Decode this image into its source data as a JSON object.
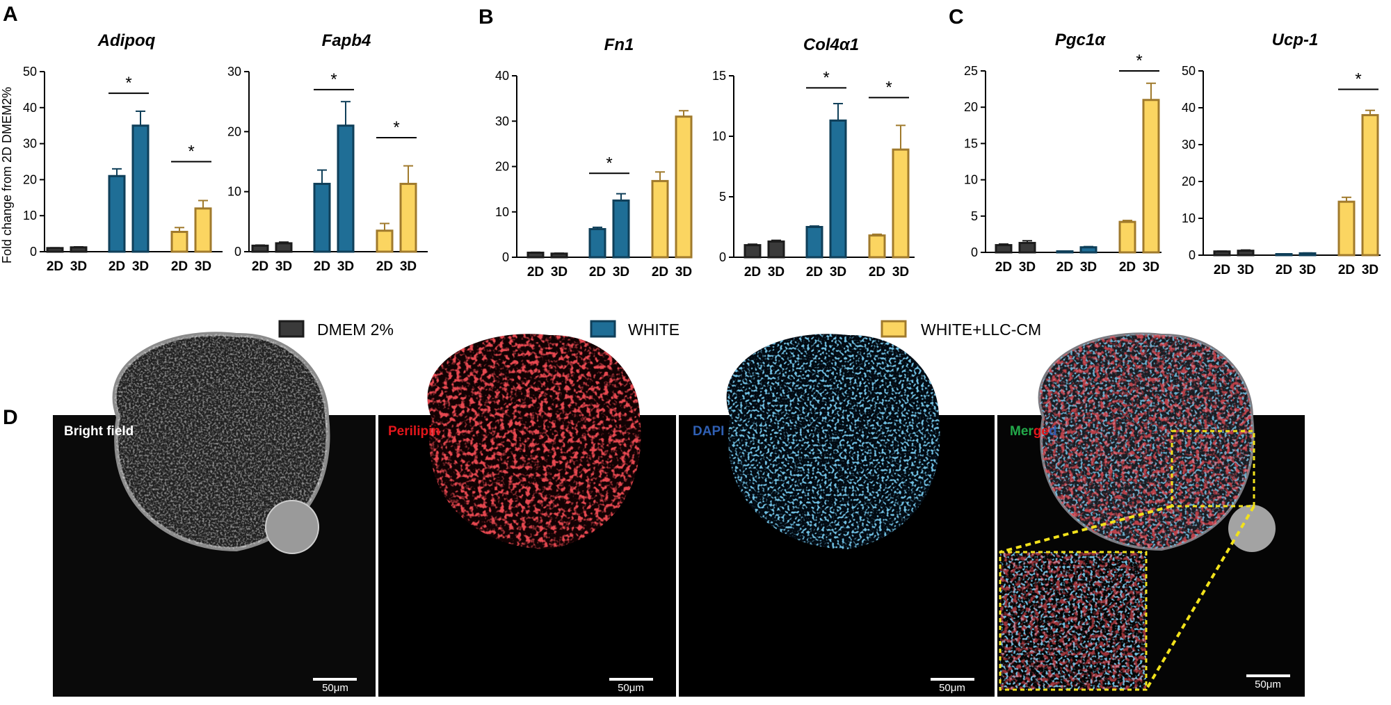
{
  "panel_labels": {
    "a": "A",
    "b": "B",
    "c": "C",
    "d": "D"
  },
  "y_axis_label": "Fold change from 2D DMEM2%",
  "legend": [
    {
      "label": "DMEM 2%",
      "fill": "#3a3a3a",
      "stroke": "#1c1c1c"
    },
    {
      "label": "WHITE",
      "fill": "#1f6e96",
      "stroke": "#0f3f59"
    },
    {
      "label": "WHITE+LLC-CM",
      "fill": "#fbd561",
      "stroke": "#a07a2c"
    }
  ],
  "colors": {
    "dmem": "#3a3a3a",
    "white": "#1f6e96",
    "llc": "#fbd561",
    "inset_border": "#f2e21b"
  },
  "chart_data": [
    {
      "type": "bar",
      "title": "Adipoq",
      "ylim": [
        0,
        50
      ],
      "yticks": [
        0,
        10,
        20,
        30,
        40,
        50
      ],
      "categories": [
        "2D",
        "3D"
      ],
      "series": [
        {
          "name": "DMEM 2%",
          "values": [
            1,
            1.2
          ],
          "errors": [
            0.1,
            0.15
          ]
        },
        {
          "name": "WHITE",
          "values": [
            21,
            35
          ],
          "errors": [
            2,
            4
          ]
        },
        {
          "name": "WHITE+LLC-CM",
          "values": [
            5.5,
            12
          ],
          "errors": [
            1.2,
            2.2
          ]
        }
      ],
      "significance": [
        {
          "series": 1,
          "label": "*",
          "y": 44
        },
        {
          "series": 2,
          "label": "*",
          "y": 25
        }
      ]
    },
    {
      "type": "bar",
      "title": "Fapb4",
      "ylim": [
        0,
        30
      ],
      "yticks": [
        0,
        10,
        20,
        30
      ],
      "categories": [
        "2D",
        "3D"
      ],
      "series": [
        {
          "name": "DMEM 2%",
          "values": [
            1,
            1.4
          ],
          "errors": [
            0.1,
            0.2
          ]
        },
        {
          "name": "WHITE",
          "values": [
            11.3,
            21
          ],
          "errors": [
            2.3,
            4
          ]
        },
        {
          "name": "WHITE+LLC-CM",
          "values": [
            3.5,
            11.3
          ],
          "errors": [
            1.2,
            3
          ]
        }
      ],
      "significance": [
        {
          "series": 1,
          "label": "*",
          "y": 27
        },
        {
          "series": 2,
          "label": "*",
          "y": 19
        }
      ]
    },
    {
      "type": "bar",
      "title": "Fn1",
      "ylim": [
        0,
        40
      ],
      "yticks": [
        0,
        10,
        20,
        30,
        40
      ],
      "categories": [
        "2D",
        "3D"
      ],
      "series": [
        {
          "name": "DMEM 2%",
          "values": [
            1,
            0.8
          ],
          "errors": [
            0.1,
            0.1
          ]
        },
        {
          "name": "WHITE",
          "values": [
            6.2,
            12.5
          ],
          "errors": [
            0.4,
            1.5
          ]
        },
        {
          "name": "WHITE+LLC-CM",
          "values": [
            16.8,
            31
          ],
          "errors": [
            2,
            1.3
          ]
        }
      ],
      "significance": [
        {
          "series": 1,
          "label": "*",
          "y": 18.5
        }
      ]
    },
    {
      "type": "bar",
      "title": "Col4α1",
      "ylim": [
        0,
        15
      ],
      "yticks": [
        0,
        5,
        10,
        15
      ],
      "categories": [
        "2D",
        "3D"
      ],
      "series": [
        {
          "name": "DMEM 2%",
          "values": [
            1,
            1.3
          ],
          "errors": [
            0.08,
            0.1
          ]
        },
        {
          "name": "WHITE",
          "values": [
            2.5,
            11.3
          ],
          "errors": [
            0.08,
            1.4
          ]
        },
        {
          "name": "WHITE+LLC-CM",
          "values": [
            1.8,
            8.9
          ],
          "errors": [
            0.1,
            2
          ]
        }
      ],
      "significance": [
        {
          "series": 1,
          "label": "*",
          "y": 14
        },
        {
          "series": 2,
          "label": "*",
          "y": 13.2
        }
      ]
    },
    {
      "type": "bar",
      "title": "Pgc1α",
      "ylim": [
        0,
        25
      ],
      "yticks": [
        0,
        5,
        10,
        15,
        20,
        25
      ],
      "categories": [
        "2D",
        "3D"
      ],
      "series": [
        {
          "name": "DMEM 2%",
          "values": [
            1,
            1.3
          ],
          "errors": [
            0.15,
            0.3
          ]
        },
        {
          "name": "WHITE",
          "values": [
            0.1,
            0.7
          ],
          "errors": [
            0.05,
            0.1
          ]
        },
        {
          "name": "WHITE+LLC-CM",
          "values": [
            4.2,
            21
          ],
          "errors": [
            0.2,
            2.3
          ]
        }
      ],
      "significance": [
        {
          "series": 2,
          "label": "*",
          "y": 25
        }
      ]
    },
    {
      "type": "bar",
      "title": "Ucp-1",
      "ylim": [
        0,
        50
      ],
      "yticks": [
        0,
        10,
        20,
        30,
        40,
        50
      ],
      "categories": [
        "2D",
        "3D"
      ],
      "series": [
        {
          "name": "DMEM 2%",
          "values": [
            1,
            1.2
          ],
          "errors": [
            0.1,
            0.2
          ]
        },
        {
          "name": "WHITE",
          "values": [
            0.05,
            0.5
          ],
          "errors": [
            0.02,
            0.1
          ]
        },
        {
          "name": "WHITE+LLC-CM",
          "values": [
            14.5,
            38
          ],
          "errors": [
            1.2,
            1.3
          ]
        }
      ],
      "significance": [
        {
          "series": 2,
          "label": "*",
          "y": 45
        }
      ]
    }
  ],
  "micrographs": [
    {
      "label": "Bright field",
      "scale_bar": "50μm"
    },
    {
      "label": "Perilipin",
      "scale_bar": "50μm"
    },
    {
      "label": "DAPI",
      "scale_bar": "50μm"
    },
    {
      "label_parts": [
        "Mer",
        "ge",
        "d"
      ],
      "scale_bar": "50μm"
    }
  ]
}
